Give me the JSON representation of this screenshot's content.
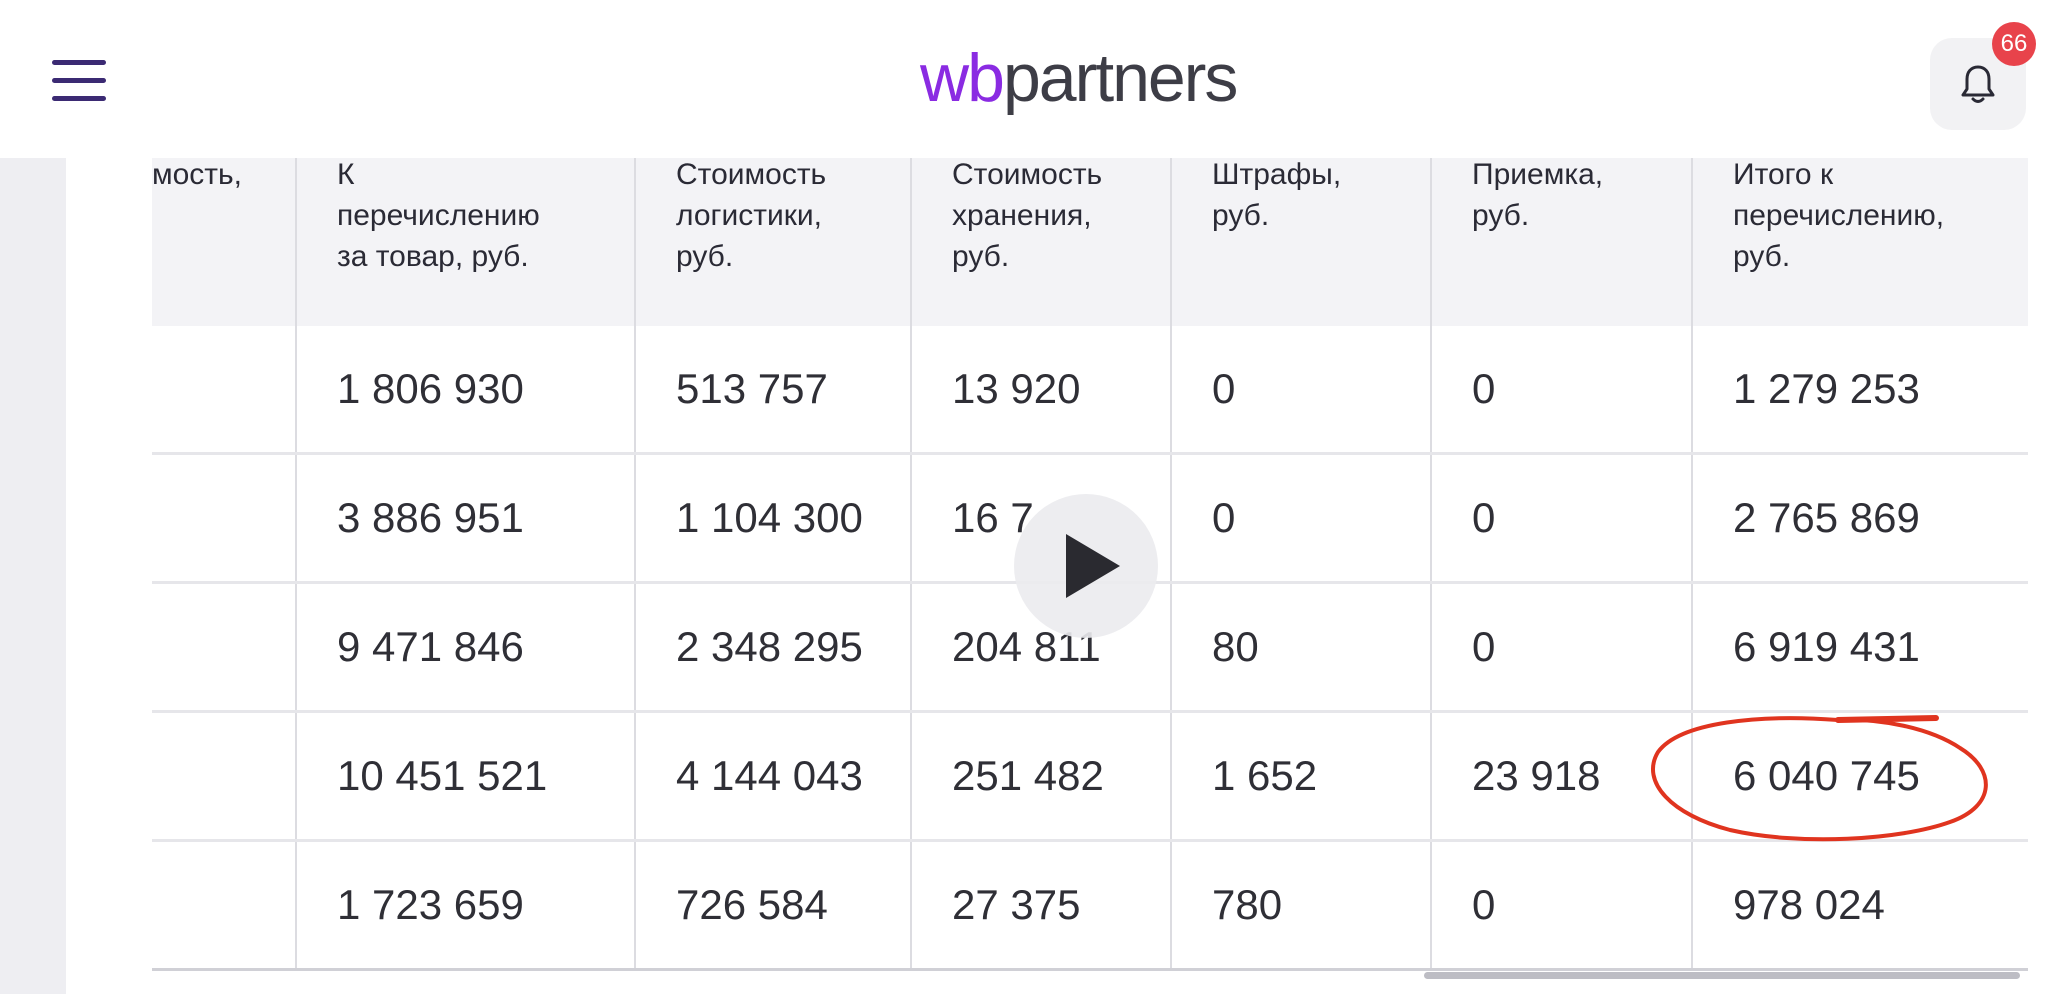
{
  "header": {
    "logo_wb": "wb",
    "logo_rest": "partners",
    "notification_count": "66"
  },
  "table": {
    "headers": [
      "мость,",
      "К\nперечислению\nза товар, руб.",
      "Стоимость\nлогистики,\nруб.",
      "Стоимость\nхранения,\nруб.",
      "Штрафы,\nруб.",
      "Приемка,\nруб.",
      "Итого к\nперечислению,\nруб."
    ],
    "rows": [
      [
        "",
        "1 806 930",
        "513 757",
        "13 920",
        "0",
        "0",
        "1 279 253"
      ],
      [
        "",
        "3 886 951",
        "1 104 300",
        "16 7",
        "0",
        "0",
        "2 765 869"
      ],
      [
        "",
        "9 471 846",
        "2 348 295",
        "204 811",
        "80",
        "0",
        "6 919 431"
      ],
      [
        "",
        "10 451 521",
        "4 144 043",
        "251 482",
        "1 652",
        "23 918",
        "6 040 745"
      ],
      [
        "",
        "1 723 659",
        "726 584",
        "27 375",
        "780",
        "0",
        "978 024"
      ]
    ]
  },
  "colors": {
    "logo_accent": "#8a2be2",
    "menu_icon": "#3b2a73",
    "badge": "#e8434b",
    "annotation": "#e0341f"
  },
  "icons": {
    "menu": "hamburger-icon",
    "notifications": "bell-icon",
    "video": "play-icon"
  }
}
